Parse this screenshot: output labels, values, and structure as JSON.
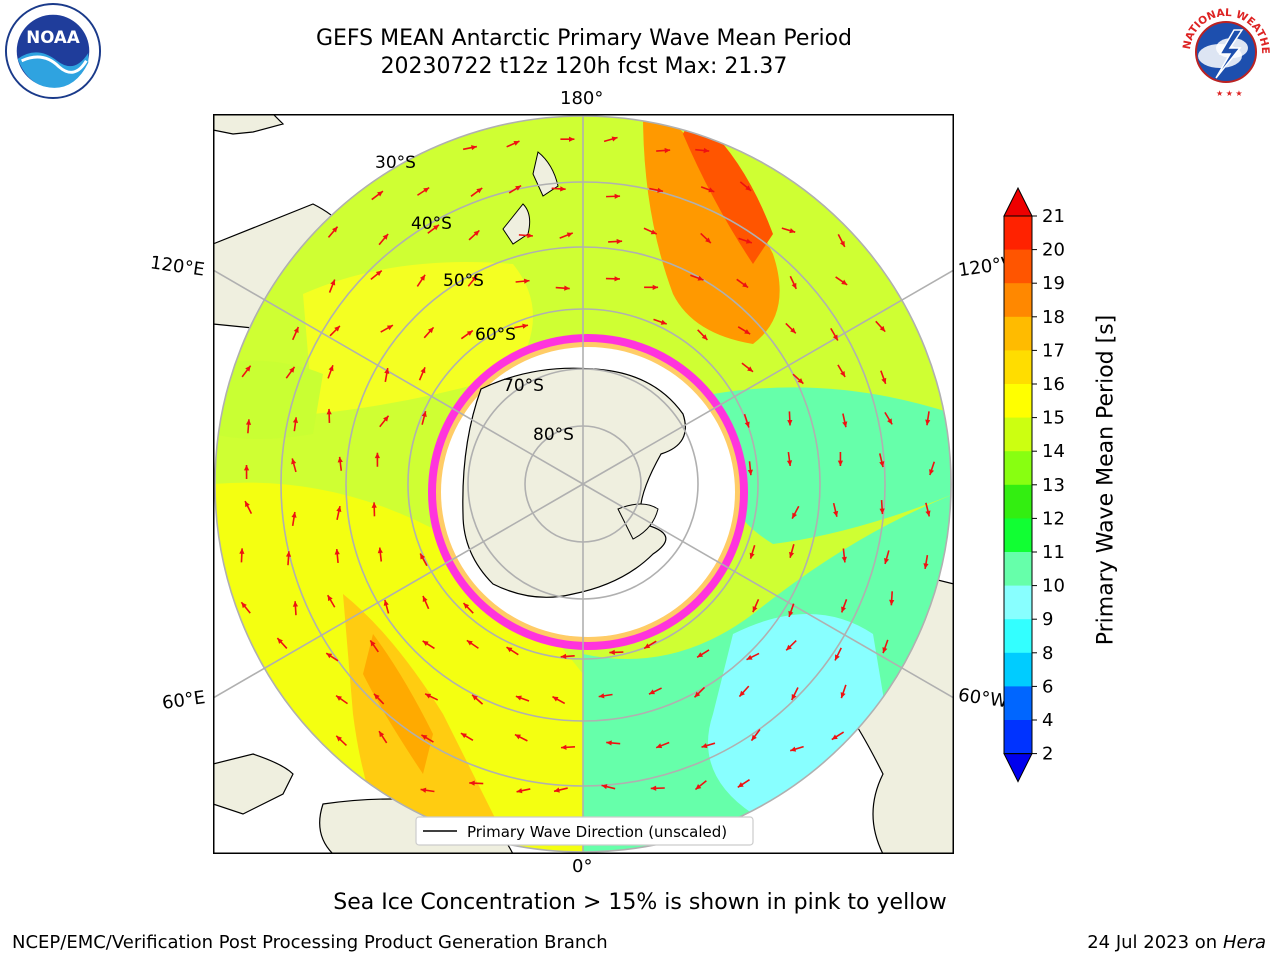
{
  "header": {
    "title_line1": "GEFS MEAN Antarctic Primary Wave Mean Period",
    "title_line2": "20230722 t12z 120h fcst   Max: 21.37"
  },
  "logos": {
    "left": {
      "icon": "noaa-logo",
      "text": "NOAA"
    },
    "right": {
      "icon": "national-weather-service-logo",
      "text": "NATIONAL WEATHER SERVICE"
    }
  },
  "map": {
    "projection": "south-polar-stereographic",
    "lon_labels": {
      "top": "180°",
      "bottom": "0°",
      "left_upper": "120°E",
      "left_lower": "60°E",
      "right_upper": "120°W",
      "right_lower": "60°W"
    },
    "lat_labels": [
      "30°S",
      "40°S",
      "50°S",
      "60°S",
      "70°S",
      "80°S"
    ],
    "legend": "Primary Wave Direction (unscaled)",
    "colors": {
      "land": "#efefdf",
      "arrow": "#ee1111",
      "grid": "#b0b0b0",
      "sea_ice": "#ff33dd"
    }
  },
  "colorbar": {
    "label": "Primary Wave Mean Period [s]",
    "ticks": [
      "2",
      "4",
      "6",
      "8",
      "9",
      "10",
      "11",
      "12",
      "13",
      "14",
      "15",
      "16",
      "17",
      "18",
      "19",
      "20",
      "21"
    ],
    "colors": [
      "#0033ff",
      "#0066ff",
      "#00ccff",
      "#33ffff",
      "#88ffff",
      "#66ffaa",
      "#11ff33",
      "#33ee11",
      "#88ff11",
      "#ccff11",
      "#ffff00",
      "#ffdd00",
      "#ffbb00",
      "#ff8800",
      "#ff5500",
      "#ff2200"
    ],
    "under_color": "#0000ee",
    "over_color": "#ee0000"
  },
  "footer": {
    "caption": "Sea Ice Concentration > 15% is shown in pink to yellow",
    "credit": "NCEP/EMC/Verification Post Processing Product Generation Branch",
    "date": "24 Jul 2023 on ",
    "host": "Hera"
  }
}
